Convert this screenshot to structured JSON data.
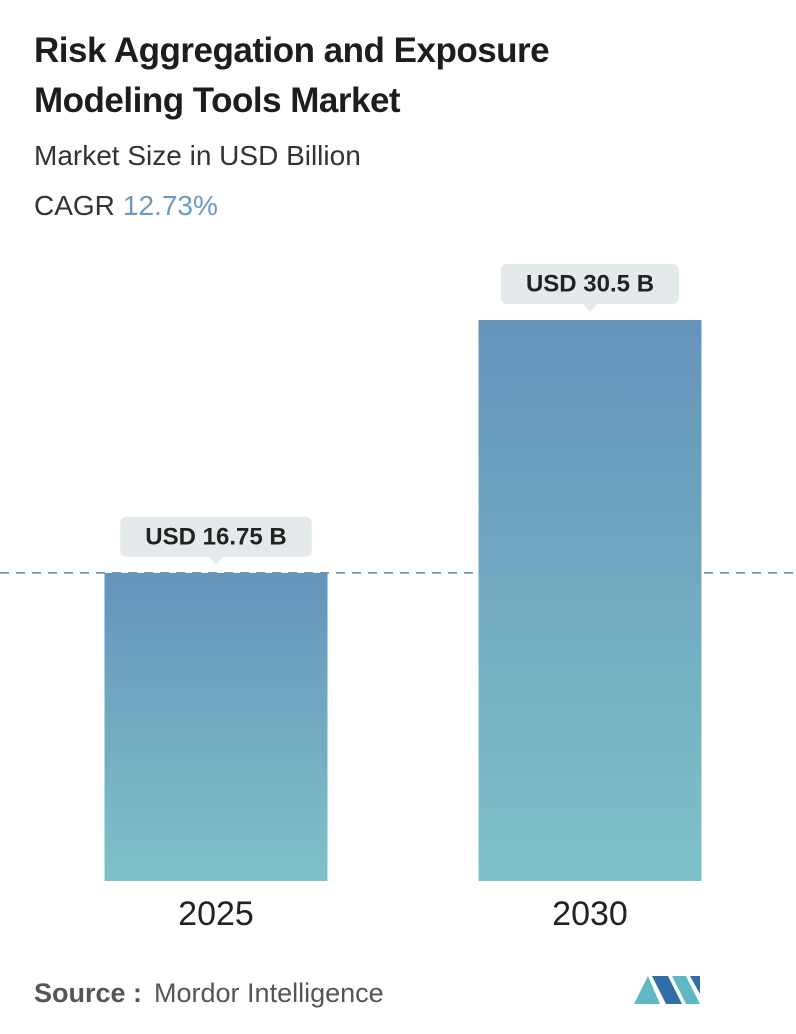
{
  "chart_data": {
    "type": "bar",
    "title": "Risk Aggregation and Exposure Modeling Tools Market",
    "subtitle": "Market Size in USD Billion",
    "cagr_label": "CAGR",
    "cagr_value": "12.73%",
    "categories": [
      "2025",
      "2030"
    ],
    "values": [
      16.75,
      30.5
    ],
    "value_labels": [
      "USD 16.75 B",
      "USD 30.5 B"
    ],
    "source_label": "Source :",
    "source": "Mordor Intelligence"
  }
}
